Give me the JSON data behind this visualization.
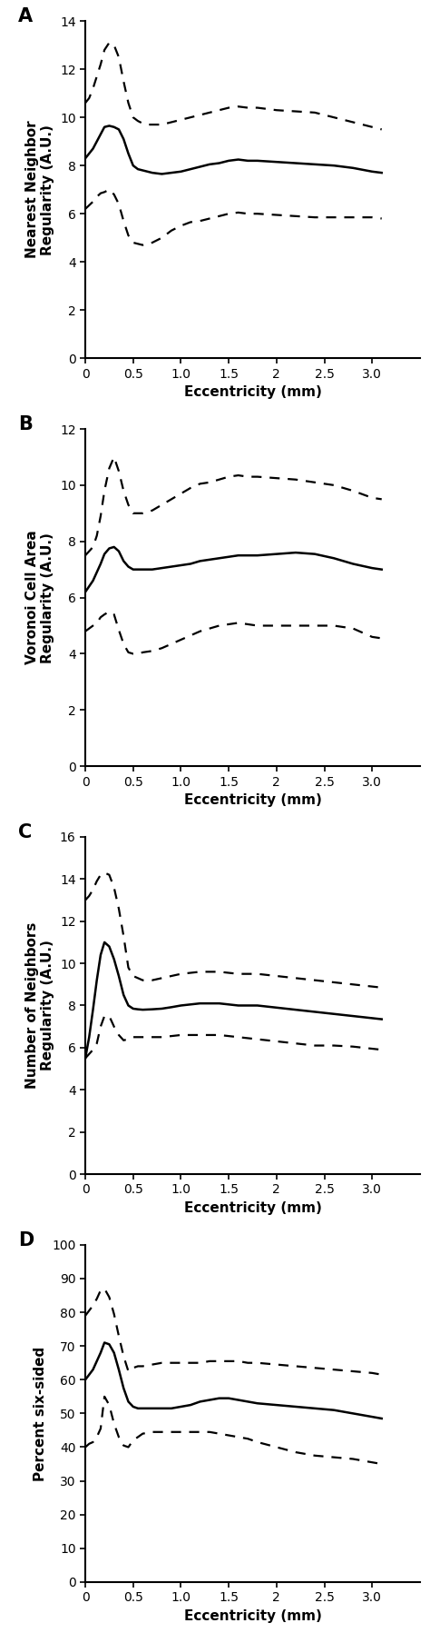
{
  "panel_A": {
    "label": "A",
    "ylabel": "Nearest Neighbor\nRegularity (A.U.)",
    "xlabel": "Eccentricity (mm)",
    "ylim": [
      0,
      14
    ],
    "yticks": [
      0,
      2,
      4,
      6,
      8,
      10,
      12,
      14
    ],
    "xlim": [
      0,
      3.5
    ],
    "xticks": [
      0,
      0.5,
      1.0,
      1.5,
      2.0,
      2.5,
      3.0
    ],
    "xticklabels": [
      "0",
      "0.5",
      "1.0",
      "1.5",
      "2",
      "2.5",
      "3.0"
    ],
    "mean": {
      "x": [
        0.0,
        0.04,
        0.08,
        0.12,
        0.16,
        0.2,
        0.25,
        0.3,
        0.35,
        0.4,
        0.45,
        0.5,
        0.55,
        0.6,
        0.65,
        0.7,
        0.8,
        0.9,
        1.0,
        1.1,
        1.2,
        1.3,
        1.4,
        1.5,
        1.6,
        1.7,
        1.8,
        2.0,
        2.2,
        2.4,
        2.6,
        2.8,
        3.0,
        3.1
      ],
      "y": [
        8.3,
        8.5,
        8.7,
        9.0,
        9.3,
        9.6,
        9.65,
        9.6,
        9.5,
        9.1,
        8.5,
        8.0,
        7.85,
        7.8,
        7.75,
        7.7,
        7.65,
        7.7,
        7.75,
        7.85,
        7.95,
        8.05,
        8.1,
        8.2,
        8.25,
        8.2,
        8.2,
        8.15,
        8.1,
        8.05,
        8.0,
        7.9,
        7.75,
        7.7
      ]
    },
    "upper": {
      "x": [
        0.0,
        0.04,
        0.08,
        0.12,
        0.16,
        0.2,
        0.25,
        0.3,
        0.35,
        0.4,
        0.45,
        0.5,
        0.55,
        0.6,
        0.65,
        0.7,
        0.8,
        0.9,
        1.0,
        1.1,
        1.2,
        1.3,
        1.4,
        1.5,
        1.6,
        1.7,
        1.8,
        2.0,
        2.2,
        2.4,
        2.6,
        2.8,
        3.0,
        3.1
      ],
      "y": [
        10.6,
        10.8,
        11.2,
        11.7,
        12.2,
        12.8,
        13.1,
        13.0,
        12.5,
        11.5,
        10.6,
        10.0,
        9.85,
        9.75,
        9.7,
        9.7,
        9.7,
        9.8,
        9.9,
        10.0,
        10.1,
        10.2,
        10.3,
        10.4,
        10.45,
        10.4,
        10.4,
        10.3,
        10.25,
        10.2,
        10.0,
        9.8,
        9.6,
        9.5
      ]
    },
    "lower": {
      "x": [
        0.0,
        0.04,
        0.08,
        0.12,
        0.16,
        0.2,
        0.25,
        0.3,
        0.35,
        0.4,
        0.45,
        0.5,
        0.55,
        0.6,
        0.65,
        0.7,
        0.8,
        0.9,
        1.0,
        1.1,
        1.2,
        1.3,
        1.4,
        1.5,
        1.6,
        1.7,
        1.8,
        2.0,
        2.2,
        2.4,
        2.6,
        2.8,
        3.0,
        3.1
      ],
      "y": [
        6.2,
        6.35,
        6.5,
        6.7,
        6.85,
        6.9,
        7.0,
        6.8,
        6.4,
        5.7,
        5.1,
        4.8,
        4.75,
        4.7,
        4.75,
        4.8,
        5.0,
        5.3,
        5.5,
        5.65,
        5.7,
        5.8,
        5.9,
        6.0,
        6.05,
        6.0,
        6.0,
        5.95,
        5.9,
        5.85,
        5.85,
        5.85,
        5.85,
        5.8
      ]
    }
  },
  "panel_B": {
    "label": "B",
    "ylabel": "Voronoi Cell Area\nRegularity (A.U.)",
    "xlabel": "Eccentricity (mm)",
    "ylim": [
      0,
      12
    ],
    "yticks": [
      0,
      2,
      4,
      6,
      8,
      10,
      12
    ],
    "xlim": [
      0,
      3.5
    ],
    "xticks": [
      0,
      0.5,
      1.0,
      1.5,
      2.0,
      2.5,
      3.0
    ],
    "xticklabels": [
      "0",
      "0.5",
      "1.0",
      "1.5",
      "2",
      "2.5",
      "3.0"
    ],
    "mean": {
      "x": [
        0.0,
        0.04,
        0.08,
        0.12,
        0.16,
        0.2,
        0.25,
        0.3,
        0.35,
        0.4,
        0.45,
        0.5,
        0.55,
        0.6,
        0.7,
        0.8,
        0.9,
        1.0,
        1.1,
        1.2,
        1.3,
        1.4,
        1.5,
        1.6,
        1.7,
        1.8,
        2.0,
        2.2,
        2.4,
        2.6,
        2.8,
        3.0,
        3.1
      ],
      "y": [
        6.2,
        6.4,
        6.6,
        6.9,
        7.2,
        7.55,
        7.75,
        7.8,
        7.65,
        7.3,
        7.1,
        7.0,
        7.0,
        7.0,
        7.0,
        7.05,
        7.1,
        7.15,
        7.2,
        7.3,
        7.35,
        7.4,
        7.45,
        7.5,
        7.5,
        7.5,
        7.55,
        7.6,
        7.55,
        7.4,
        7.2,
        7.05,
        7.0
      ]
    },
    "upper": {
      "x": [
        0.0,
        0.04,
        0.08,
        0.12,
        0.16,
        0.2,
        0.25,
        0.3,
        0.35,
        0.4,
        0.45,
        0.5,
        0.55,
        0.6,
        0.7,
        0.8,
        0.9,
        1.0,
        1.1,
        1.2,
        1.3,
        1.4,
        1.5,
        1.6,
        1.7,
        1.8,
        2.0,
        2.2,
        2.4,
        2.6,
        2.8,
        3.0,
        3.1
      ],
      "y": [
        7.5,
        7.65,
        7.8,
        8.2,
        8.9,
        9.8,
        10.6,
        11.0,
        10.5,
        9.8,
        9.3,
        9.0,
        9.0,
        9.0,
        9.1,
        9.3,
        9.5,
        9.7,
        9.9,
        10.05,
        10.1,
        10.2,
        10.3,
        10.35,
        10.3,
        10.3,
        10.25,
        10.2,
        10.1,
        10.0,
        9.8,
        9.55,
        9.5
      ]
    },
    "lower": {
      "x": [
        0.0,
        0.04,
        0.08,
        0.12,
        0.16,
        0.2,
        0.25,
        0.3,
        0.35,
        0.4,
        0.45,
        0.5,
        0.55,
        0.6,
        0.7,
        0.8,
        0.9,
        1.0,
        1.1,
        1.2,
        1.3,
        1.4,
        1.5,
        1.6,
        1.7,
        1.8,
        2.0,
        2.2,
        2.4,
        2.6,
        2.8,
        3.0,
        3.1
      ],
      "y": [
        4.8,
        4.9,
        5.0,
        5.1,
        5.3,
        5.4,
        5.5,
        5.4,
        4.85,
        4.35,
        4.05,
        4.0,
        4.0,
        4.05,
        4.1,
        4.2,
        4.35,
        4.5,
        4.65,
        4.8,
        4.9,
        5.0,
        5.05,
        5.1,
        5.05,
        5.0,
        5.0,
        5.0,
        5.0,
        5.0,
        4.9,
        4.6,
        4.55
      ]
    }
  },
  "panel_C": {
    "label": "C",
    "ylabel": "Number of Neighbors\nRegularity (A.U.)",
    "xlabel": "Eccentricity (mm)",
    "ylim": [
      0,
      16
    ],
    "yticks": [
      0,
      2,
      4,
      6,
      8,
      10,
      12,
      14,
      16
    ],
    "xlim": [
      0,
      3.5
    ],
    "xticks": [
      0,
      0.5,
      1.0,
      1.5,
      2.0,
      2.5,
      3.0
    ],
    "xticklabels": [
      "0",
      "0.5",
      "1.0",
      "1.5",
      "2",
      "2.5",
      "3.0"
    ],
    "mean": {
      "x": [
        0.0,
        0.04,
        0.08,
        0.12,
        0.16,
        0.2,
        0.25,
        0.3,
        0.35,
        0.4,
        0.45,
        0.5,
        0.55,
        0.6,
        0.7,
        0.8,
        0.9,
        1.0,
        1.1,
        1.2,
        1.3,
        1.4,
        1.5,
        1.6,
        1.7,
        1.8,
        2.0,
        2.2,
        2.4,
        2.6,
        2.8,
        3.0,
        3.1
      ],
      "y": [
        5.5,
        6.5,
        7.8,
        9.2,
        10.4,
        11.0,
        10.8,
        10.2,
        9.4,
        8.5,
        8.0,
        7.85,
        7.82,
        7.8,
        7.82,
        7.85,
        7.92,
        8.0,
        8.05,
        8.1,
        8.1,
        8.1,
        8.05,
        8.0,
        8.0,
        8.0,
        7.9,
        7.8,
        7.7,
        7.6,
        7.5,
        7.4,
        7.35
      ]
    },
    "upper": {
      "x": [
        0.0,
        0.04,
        0.08,
        0.12,
        0.16,
        0.2,
        0.25,
        0.3,
        0.35,
        0.4,
        0.45,
        0.5,
        0.55,
        0.6,
        0.7,
        0.8,
        0.9,
        1.0,
        1.1,
        1.2,
        1.3,
        1.4,
        1.5,
        1.6,
        1.7,
        1.8,
        2.0,
        2.2,
        2.4,
        2.6,
        2.8,
        3.0,
        3.1
      ],
      "y": [
        13.0,
        13.2,
        13.5,
        13.9,
        14.2,
        14.3,
        14.2,
        13.6,
        12.6,
        11.3,
        9.8,
        9.4,
        9.3,
        9.2,
        9.2,
        9.3,
        9.4,
        9.5,
        9.55,
        9.6,
        9.6,
        9.6,
        9.55,
        9.5,
        9.5,
        9.5,
        9.4,
        9.3,
        9.2,
        9.1,
        9.0,
        8.9,
        8.85
      ]
    },
    "lower": {
      "x": [
        0.0,
        0.04,
        0.08,
        0.12,
        0.16,
        0.2,
        0.25,
        0.3,
        0.35,
        0.4,
        0.45,
        0.5,
        0.55,
        0.6,
        0.7,
        0.8,
        0.9,
        1.0,
        1.1,
        1.2,
        1.3,
        1.4,
        1.5,
        1.6,
        1.7,
        1.8,
        2.0,
        2.2,
        2.4,
        2.6,
        2.8,
        3.0,
        3.1
      ],
      "y": [
        5.5,
        5.7,
        5.9,
        6.2,
        7.0,
        7.5,
        7.5,
        7.0,
        6.6,
        6.35,
        6.4,
        6.5,
        6.5,
        6.5,
        6.5,
        6.5,
        6.55,
        6.6,
        6.6,
        6.6,
        6.6,
        6.6,
        6.55,
        6.5,
        6.45,
        6.4,
        6.3,
        6.2,
        6.1,
        6.1,
        6.05,
        5.95,
        5.9
      ]
    }
  },
  "panel_D": {
    "label": "D",
    "ylabel": "Percent six-sided",
    "xlabel": "Eccentricity (mm)",
    "ylim": [
      0,
      100
    ],
    "yticks": [
      0,
      10,
      20,
      30,
      40,
      50,
      60,
      70,
      80,
      90,
      100
    ],
    "xlim": [
      0,
      3.5
    ],
    "xticks": [
      0,
      0.5,
      1.0,
      1.5,
      2.0,
      2.5,
      3.0
    ],
    "xticklabels": [
      "0",
      "0.5",
      "1.0",
      "1.5",
      "2",
      "2.5",
      "3.0"
    ],
    "mean": {
      "x": [
        0.0,
        0.04,
        0.08,
        0.12,
        0.16,
        0.2,
        0.25,
        0.3,
        0.35,
        0.4,
        0.45,
        0.5,
        0.55,
        0.6,
        0.7,
        0.8,
        0.9,
        1.0,
        1.1,
        1.2,
        1.3,
        1.4,
        1.5,
        1.6,
        1.7,
        1.8,
        2.0,
        2.2,
        2.4,
        2.6,
        2.8,
        3.0,
        3.1
      ],
      "y": [
        60.0,
        61.5,
        63.0,
        65.5,
        68.0,
        71.0,
        70.5,
        68.0,
        63.0,
        57.5,
        53.5,
        52.0,
        51.5,
        51.5,
        51.5,
        51.5,
        51.5,
        52.0,
        52.5,
        53.5,
        54.0,
        54.5,
        54.5,
        54.0,
        53.5,
        53.0,
        52.5,
        52.0,
        51.5,
        51.0,
        50.0,
        49.0,
        48.5
      ]
    },
    "upper": {
      "x": [
        0.0,
        0.04,
        0.08,
        0.12,
        0.16,
        0.2,
        0.25,
        0.3,
        0.35,
        0.4,
        0.45,
        0.5,
        0.55,
        0.6,
        0.7,
        0.8,
        0.9,
        1.0,
        1.1,
        1.2,
        1.3,
        1.4,
        1.5,
        1.6,
        1.7,
        1.8,
        2.0,
        2.2,
        2.4,
        2.6,
        2.8,
        3.0,
        3.1
      ],
      "y": [
        79.0,
        80.5,
        82.0,
        84.0,
        86.5,
        87.0,
        84.5,
        79.5,
        73.0,
        67.0,
        62.5,
        63.5,
        64.0,
        64.0,
        64.5,
        65.0,
        65.0,
        65.0,
        65.0,
        65.0,
        65.5,
        65.5,
        65.5,
        65.5,
        65.0,
        65.0,
        64.5,
        64.0,
        63.5,
        63.0,
        62.5,
        62.0,
        61.5
      ]
    },
    "lower": {
      "x": [
        0.0,
        0.04,
        0.08,
        0.12,
        0.16,
        0.2,
        0.25,
        0.3,
        0.35,
        0.4,
        0.45,
        0.5,
        0.55,
        0.6,
        0.7,
        0.8,
        0.9,
        1.0,
        1.1,
        1.2,
        1.3,
        1.4,
        1.5,
        1.6,
        1.7,
        1.8,
        2.0,
        2.2,
        2.4,
        2.6,
        2.8,
        3.0,
        3.1
      ],
      "y": [
        40.0,
        41.0,
        41.5,
        43.0,
        45.5,
        55.0,
        52.5,
        47.0,
        43.0,
        40.5,
        40.0,
        42.0,
        43.0,
        44.0,
        44.5,
        44.5,
        44.5,
        44.5,
        44.5,
        44.5,
        44.5,
        44.0,
        43.5,
        43.0,
        42.5,
        41.5,
        40.0,
        38.5,
        37.5,
        37.0,
        36.5,
        35.5,
        35.0
      ]
    }
  },
  "line_color": "#000000",
  "mean_linewidth": 1.8,
  "dashed_linewidth": 1.6,
  "label_fontsize": 11,
  "tick_fontsize": 10,
  "panel_label_fontsize": 15
}
